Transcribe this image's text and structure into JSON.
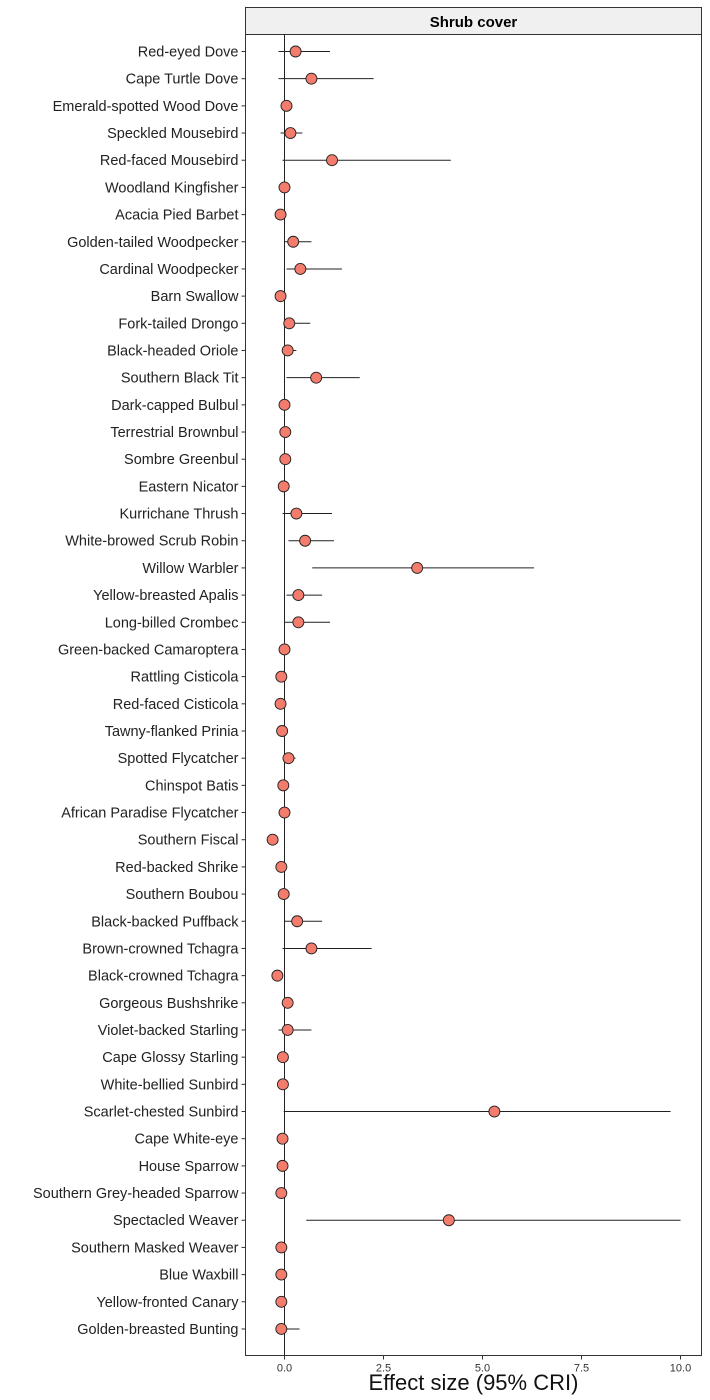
{
  "chart_data": {
    "type": "forest",
    "facet_title": "Shrub cover",
    "xlabel": "Effect size (95% CRI)",
    "ylabel": "",
    "xlim": [
      -1.0,
      10.5
    ],
    "x_ticks": [
      0.0,
      2.5,
      5.0,
      7.5,
      10.0
    ],
    "x_tick_labels": [
      "0.0",
      "2.5",
      "5.0",
      "7.5",
      "10.0"
    ],
    "reference_line": 0,
    "grid": false,
    "point_color": "#f47c6c",
    "point_edge_color": "#222222",
    "species": [
      {
        "name": "Red-eyed Dove",
        "estimate": 0.28,
        "lower": -0.15,
        "upper": 1.15
      },
      {
        "name": "Cape Turtle Dove",
        "estimate": 0.68,
        "lower": -0.15,
        "upper": 2.25
      },
      {
        "name": "Emerald-spotted Wood Dove",
        "estimate": 0.05,
        "lower": -0.1,
        "upper": 0.2
      },
      {
        "name": "Speckled Mousebird",
        "estimate": 0.15,
        "lower": -0.1,
        "upper": 0.45
      },
      {
        "name": "Red-faced Mousebird",
        "estimate": 1.2,
        "lower": -0.05,
        "upper": 4.2
      },
      {
        "name": "Woodland Kingfisher",
        "estimate": 0.0,
        "lower": -0.08,
        "upper": 0.08
      },
      {
        "name": "Acacia Pied Barbet",
        "estimate": -0.1,
        "lower": -0.15,
        "upper": 0.0
      },
      {
        "name": "Golden-tailed Woodpecker",
        "estimate": 0.22,
        "lower": 0.0,
        "upper": 0.68
      },
      {
        "name": "Cardinal Woodpecker",
        "estimate": 0.4,
        "lower": 0.05,
        "upper": 1.45
      },
      {
        "name": "Barn Swallow",
        "estimate": -0.1,
        "lower": -0.12,
        "upper": -0.05
      },
      {
        "name": "Fork-tailed Drongo",
        "estimate": 0.12,
        "lower": 0.0,
        "upper": 0.65
      },
      {
        "name": "Black-headed Oriole",
        "estimate": 0.08,
        "lower": 0.0,
        "upper": 0.3
      },
      {
        "name": "Southern Black Tit",
        "estimate": 0.8,
        "lower": 0.05,
        "upper": 1.9
      },
      {
        "name": "Dark-capped Bulbul",
        "estimate": 0.0,
        "lower": -0.06,
        "upper": 0.06
      },
      {
        "name": "Terrestrial Brownbul",
        "estimate": 0.02,
        "lower": -0.05,
        "upper": 0.08
      },
      {
        "name": "Sombre Greenbul",
        "estimate": 0.02,
        "lower": -0.05,
        "upper": 0.08
      },
      {
        "name": "Eastern Nicator",
        "estimate": -0.02,
        "lower": -0.08,
        "upper": 0.05
      },
      {
        "name": "Kurrichane Thrush",
        "estimate": 0.3,
        "lower": -0.05,
        "upper": 1.2
      },
      {
        "name": "White-browed Scrub Robin",
        "estimate": 0.52,
        "lower": 0.1,
        "upper": 1.25
      },
      {
        "name": "Willow Warbler",
        "estimate": 3.35,
        "lower": 0.7,
        "upper": 6.3
      },
      {
        "name": "Yellow-breasted Apalis",
        "estimate": 0.35,
        "lower": 0.05,
        "upper": 0.95
      },
      {
        "name": "Long-billed Crombec",
        "estimate": 0.35,
        "lower": 0.0,
        "upper": 1.15
      },
      {
        "name": "Green-backed Camaroptera",
        "estimate": 0.0,
        "lower": -0.05,
        "upper": 0.05
      },
      {
        "name": "Rattling Cisticola",
        "estimate": -0.08,
        "lower": -0.12,
        "upper": -0.04
      },
      {
        "name": "Red-faced Cisticola",
        "estimate": -0.1,
        "lower": -0.14,
        "upper": -0.06
      },
      {
        "name": "Tawny-flanked Prinia",
        "estimate": -0.06,
        "lower": -0.1,
        "upper": -0.02
      },
      {
        "name": "Spotted Flycatcher",
        "estimate": 0.1,
        "lower": 0.02,
        "upper": 0.28
      },
      {
        "name": "Chinspot Batis",
        "estimate": -0.03,
        "lower": -0.08,
        "upper": 0.02
      },
      {
        "name": "African Paradise Flycatcher",
        "estimate": 0.0,
        "lower": -0.06,
        "upper": 0.1
      },
      {
        "name": "Southern Fiscal",
        "estimate": -0.3,
        "lower": -0.38,
        "upper": -0.22
      },
      {
        "name": "Red-backed Shrike",
        "estimate": -0.08,
        "lower": -0.12,
        "upper": -0.04
      },
      {
        "name": "Southern Boubou",
        "estimate": -0.02,
        "lower": -0.06,
        "upper": 0.02
      },
      {
        "name": "Black-backed Puffback",
        "estimate": 0.32,
        "lower": 0.0,
        "upper": 0.95
      },
      {
        "name": "Brown-crowned Tchagra",
        "estimate": 0.68,
        "lower": -0.05,
        "upper": 2.2
      },
      {
        "name": "Black-crowned Tchagra",
        "estimate": -0.18,
        "lower": -0.24,
        "upper": -0.12
      },
      {
        "name": "Gorgeous Bushshrike",
        "estimate": 0.08,
        "lower": 0.0,
        "upper": 0.16
      },
      {
        "name": "Violet-backed Starling",
        "estimate": 0.08,
        "lower": -0.15,
        "upper": 0.68
      },
      {
        "name": "Cape Glossy Starling",
        "estimate": -0.04,
        "lower": -0.08,
        "upper": 0.0
      },
      {
        "name": "White-bellied Sunbird",
        "estimate": -0.04,
        "lower": -0.08,
        "upper": 0.0
      },
      {
        "name": "Scarlet-chested Sunbird",
        "estimate": 5.3,
        "lower": -0.02,
        "upper": 9.75
      },
      {
        "name": "Cape White-eye",
        "estimate": -0.05,
        "lower": -0.09,
        "upper": -0.01
      },
      {
        "name": "House Sparrow",
        "estimate": -0.05,
        "lower": -0.09,
        "upper": -0.01
      },
      {
        "name": "Southern Grey-headed Sparrow",
        "estimate": -0.08,
        "lower": -0.12,
        "upper": -0.04
      },
      {
        "name": "Spectacled Weaver",
        "estimate": 4.15,
        "lower": 0.55,
        "upper": 10.0
      },
      {
        "name": "Southern Masked Weaver",
        "estimate": -0.08,
        "lower": -0.12,
        "upper": -0.04
      },
      {
        "name": "Blue Waxbill",
        "estimate": -0.08,
        "lower": -0.12,
        "upper": -0.04
      },
      {
        "name": "Yellow-fronted Canary",
        "estimate": -0.08,
        "lower": -0.12,
        "upper": -0.04
      },
      {
        "name": "Golden-breasted Bunting",
        "estimate": -0.08,
        "lower": -0.12,
        "upper": 0.38
      }
    ]
  }
}
